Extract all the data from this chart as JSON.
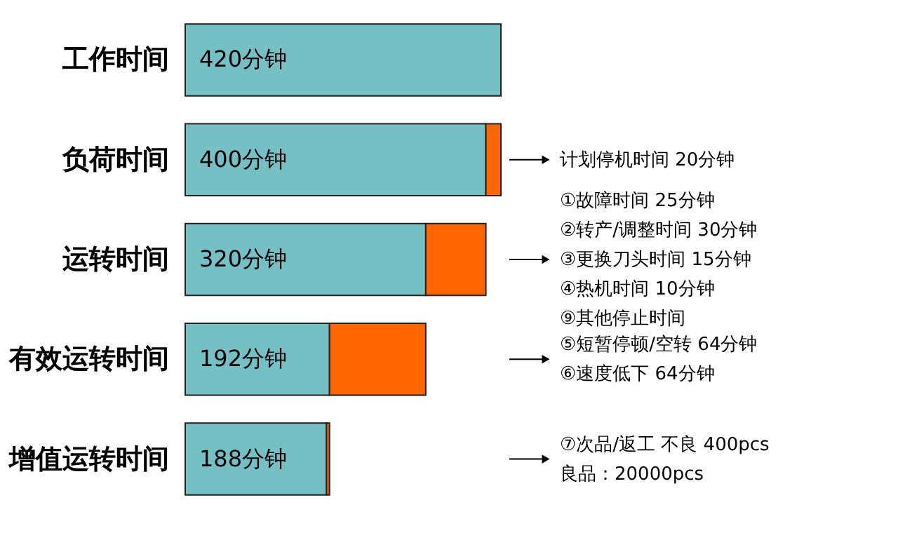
{
  "chart_data": {
    "type": "bar",
    "orientation": "horizontal",
    "stacked": true,
    "legend": false,
    "tick_labels": "y",
    "categories": [
      "工作时间",
      "负荷时间",
      "运转时间",
      "有效运转时间",
      "增值运转时间"
    ],
    "series": [
      {
        "color": "#74c0c4",
        "values": [
          420,
          400,
          320,
          192,
          188
        ],
        "value_labels": [
          "420分钟",
          "400分钟",
          "320分钟",
          "192分钟",
          "188分钟"
        ]
      },
      {
        "color": "#ff6600",
        "values": [
          null,
          20,
          80,
          128,
          4
        ]
      }
    ],
    "annotations": [
      "计划停机时间      20分钟",
      "①故障时间          25分钟\n②转产/调整时间     30分钟\n③更换刀头时间       15分钟\n④热机时间            10分钟\n⑨其他停止时间",
      "⑤短暂停顿/空转      64分钟\n⑥速度低下             64分钟",
      "⑦次品/返工 不良  400pcs\n良品：20000pcs"
    ]
  }
}
